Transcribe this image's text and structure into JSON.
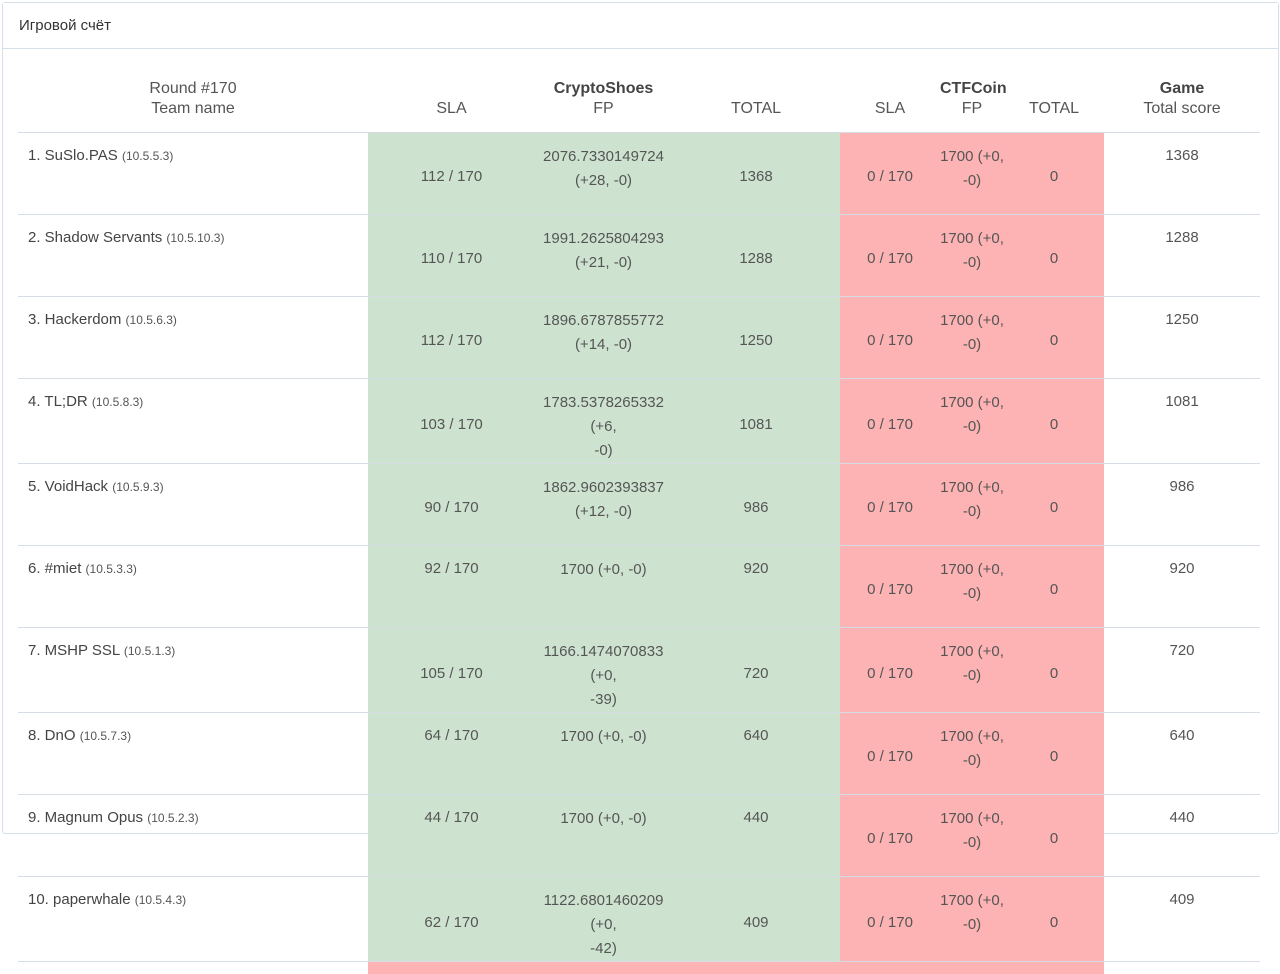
{
  "panel": {
    "title": "Игровой счёт"
  },
  "header": {
    "round": "Round #170",
    "team_name": "Team name",
    "services": [
      {
        "name": "CryptoShoes",
        "sla": "SLA",
        "fp": "FP",
        "total": "TOTAL"
      },
      {
        "name": "CTFCoin",
        "sla": "SLA",
        "fp": "FP",
        "total": "TOTAL"
      }
    ],
    "game": "Game",
    "total_score": "Total score"
  },
  "colors": {
    "up": "#cde3cf",
    "down": "#fdb3b4",
    "border": "#d6dde4"
  },
  "teams": [
    {
      "name": "1. SuSlo.PAS",
      "ip": "(10.5.5.3)",
      "s1_sla": "112 / 170",
      "s1_fp_a": "2076.7330149724",
      "s1_fp_b": "(+28, -0)",
      "s1_total": "1368",
      "s2_sla": "0 / 170",
      "s2_fp_a": "1700 (+0,",
      "s2_fp_b": "-0)",
      "s2_total": "0",
      "game": "1368"
    },
    {
      "name": "2. Shadow Servants",
      "ip": "(10.5.10.3)",
      "s1_sla": "110 / 170",
      "s1_fp_a": "1991.2625804293",
      "s1_fp_b": "(+21, -0)",
      "s1_total": "1288",
      "s2_sla": "0 / 170",
      "s2_fp_a": "1700 (+0,",
      "s2_fp_b": "-0)",
      "s2_total": "0",
      "game": "1288"
    },
    {
      "name": "3. Hackerdom",
      "ip": "(10.5.6.3)",
      "s1_sla": "112 / 170",
      "s1_fp_a": "1896.6787855772",
      "s1_fp_b": "(+14, -0)",
      "s1_total": "1250",
      "s2_sla": "0 / 170",
      "s2_fp_a": "1700 (+0,",
      "s2_fp_b": "-0)",
      "s2_total": "0",
      "game": "1250"
    },
    {
      "name": "4. TL;DR",
      "ip": "(10.5.8.3)",
      "s1_sla": "103 / 170",
      "s1_fp_a": "1783.5378265332 (+6,",
      "s1_fp_b": "-0)",
      "s1_total": "1081",
      "s2_sla": "0 / 170",
      "s2_fp_a": "1700 (+0,",
      "s2_fp_b": "-0)",
      "s2_total": "0",
      "game": "1081"
    },
    {
      "name": "5. VoidHack",
      "ip": "(10.5.9.3)",
      "s1_sla": "90 / 170",
      "s1_fp_a": "1862.9602393837",
      "s1_fp_b": "(+12, -0)",
      "s1_total": "986",
      "s2_sla": "0 / 170",
      "s2_fp_a": "1700 (+0,",
      "s2_fp_b": "-0)",
      "s2_total": "0",
      "game": "986"
    },
    {
      "name": "6. #miet",
      "ip": "(10.5.3.3)",
      "s1_sla": "92 / 170",
      "s1_fp_a": "1700 (+0, -0)",
      "s1_fp_b": "",
      "s1_total": "920",
      "s2_sla": "0 / 170",
      "s2_fp_a": "1700 (+0,",
      "s2_fp_b": "-0)",
      "s2_total": "0",
      "game": "920"
    },
    {
      "name": "7. MSHP SSL",
      "ip": "(10.5.1.3)",
      "s1_sla": "105 / 170",
      "s1_fp_a": "1166.1474070833 (+0,",
      "s1_fp_b": "-39)",
      "s1_total": "720",
      "s2_sla": "0 / 170",
      "s2_fp_a": "1700 (+0,",
      "s2_fp_b": "-0)",
      "s2_total": "0",
      "game": "720"
    },
    {
      "name": "8. DnO",
      "ip": "(10.5.7.3)",
      "s1_sla": "64 / 170",
      "s1_fp_a": "1700 (+0, -0)",
      "s1_fp_b": "",
      "s1_total": "640",
      "s2_sla": "0 / 170",
      "s2_fp_a": "1700 (+0,",
      "s2_fp_b": "-0)",
      "s2_total": "0",
      "game": "640"
    },
    {
      "name": "9. Magnum Opus",
      "ip": "(10.5.2.3)",
      "s1_sla": "44 / 170",
      "s1_fp_a": "1700 (+0, -0)",
      "s1_fp_b": "",
      "s1_total": "440",
      "s2_sla": "0 / 170",
      "s2_fp_a": "1700 (+0,",
      "s2_fp_b": "-0)",
      "s2_total": "0",
      "game": "440"
    },
    {
      "name": "10. paperwhale",
      "ip": "(10.5.4.3)",
      "s1_sla": "62 / 170",
      "s1_fp_a": "1122.6801460209 (+0,",
      "s1_fp_b": "-42)",
      "s1_total": "409",
      "s2_sla": "0 / 170",
      "s2_fp_a": "1700 (+0,",
      "s2_fp_b": "-0)",
      "s2_total": "0",
      "game": "409"
    }
  ]
}
